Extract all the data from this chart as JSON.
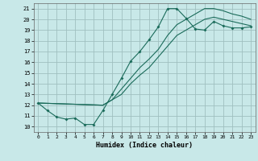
{
  "background_color": "#c8e8e8",
  "grid_color": "#a0c0c0",
  "line_color": "#1a6b5a",
  "xlabel": "Humidex (Indice chaleur)",
  "ylim": [
    9.5,
    21.5
  ],
  "xlim": [
    -0.5,
    23.5
  ],
  "yticks": [
    10,
    11,
    12,
    13,
    14,
    15,
    16,
    17,
    18,
    19,
    20,
    21
  ],
  "xticks": [
    0,
    1,
    2,
    3,
    4,
    5,
    6,
    7,
    8,
    9,
    10,
    11,
    12,
    13,
    14,
    15,
    16,
    17,
    18,
    19,
    20,
    21,
    22,
    23
  ],
  "series1_x": [
    0,
    1,
    2,
    3,
    4,
    5,
    6,
    7,
    8,
    9,
    10,
    11,
    12,
    13,
    14,
    15,
    16,
    17,
    18,
    19,
    20,
    21,
    22,
    23
  ],
  "series1_y": [
    12.2,
    11.5,
    10.9,
    10.7,
    10.8,
    10.2,
    10.2,
    11.5,
    13.0,
    14.5,
    16.1,
    17.0,
    18.1,
    19.3,
    21.0,
    21.0,
    20.1,
    19.1,
    19.0,
    19.8,
    19.4,
    19.2,
    19.2,
    19.3
  ],
  "series2_x": [
    0,
    7,
    8,
    9,
    10,
    11,
    12,
    13,
    14,
    15,
    16,
    17,
    18,
    19,
    20,
    21,
    22,
    23
  ],
  "series2_y": [
    12.2,
    12.0,
    12.5,
    13.5,
    14.5,
    15.5,
    16.3,
    17.2,
    18.5,
    19.5,
    20.0,
    20.5,
    21.0,
    21.0,
    20.8,
    20.5,
    20.3,
    20.0
  ],
  "series3_x": [
    0,
    7,
    8,
    9,
    10,
    11,
    12,
    13,
    14,
    15,
    16,
    17,
    18,
    19,
    20,
    21,
    22,
    23
  ],
  "series3_y": [
    12.2,
    12.0,
    12.5,
    13.0,
    14.0,
    14.8,
    15.5,
    16.5,
    17.5,
    18.5,
    19.0,
    19.5,
    20.0,
    20.2,
    20.0,
    19.8,
    19.6,
    19.4
  ]
}
